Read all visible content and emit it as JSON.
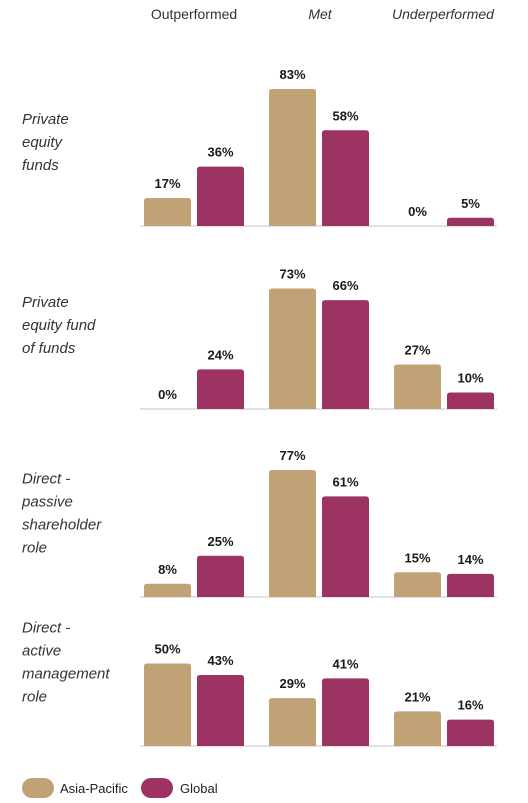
{
  "chart_data": {
    "type": "bar",
    "categories": [
      "Outperformed",
      "Met",
      "Underperformed"
    ],
    "category_italic": [
      false,
      true,
      true
    ],
    "groups": [
      {
        "label_lines": [
          "Private",
          "equity",
          "funds"
        ],
        "asia_pacific": [
          17,
          83,
          0
        ],
        "global": [
          36,
          58,
          5
        ]
      },
      {
        "label_lines": [
          "Private",
          "equity fund",
          "of funds"
        ],
        "asia_pacific": [
          0,
          73,
          27
        ],
        "global": [
          24,
          66,
          10
        ]
      },
      {
        "label_lines": [
          "Direct -",
          "passive",
          "shareholder",
          "role"
        ],
        "asia_pacific": [
          8,
          77,
          15
        ],
        "global": [
          25,
          61,
          14
        ]
      },
      {
        "label_lines": [
          "Direct -",
          "active",
          "management",
          "role"
        ],
        "asia_pacific": [
          50,
          29,
          21
        ],
        "global": [
          43,
          41,
          16
        ]
      }
    ],
    "series": [
      {
        "key": "asia_pacific",
        "name": "Asia-Pacific",
        "color": "#c1a276"
      },
      {
        "key": "global",
        "name": "Global",
        "color": "#9c3362"
      }
    ],
    "value_suffix": "%",
    "ylim": [
      0,
      100
    ],
    "legend_position": "bottom-left"
  }
}
